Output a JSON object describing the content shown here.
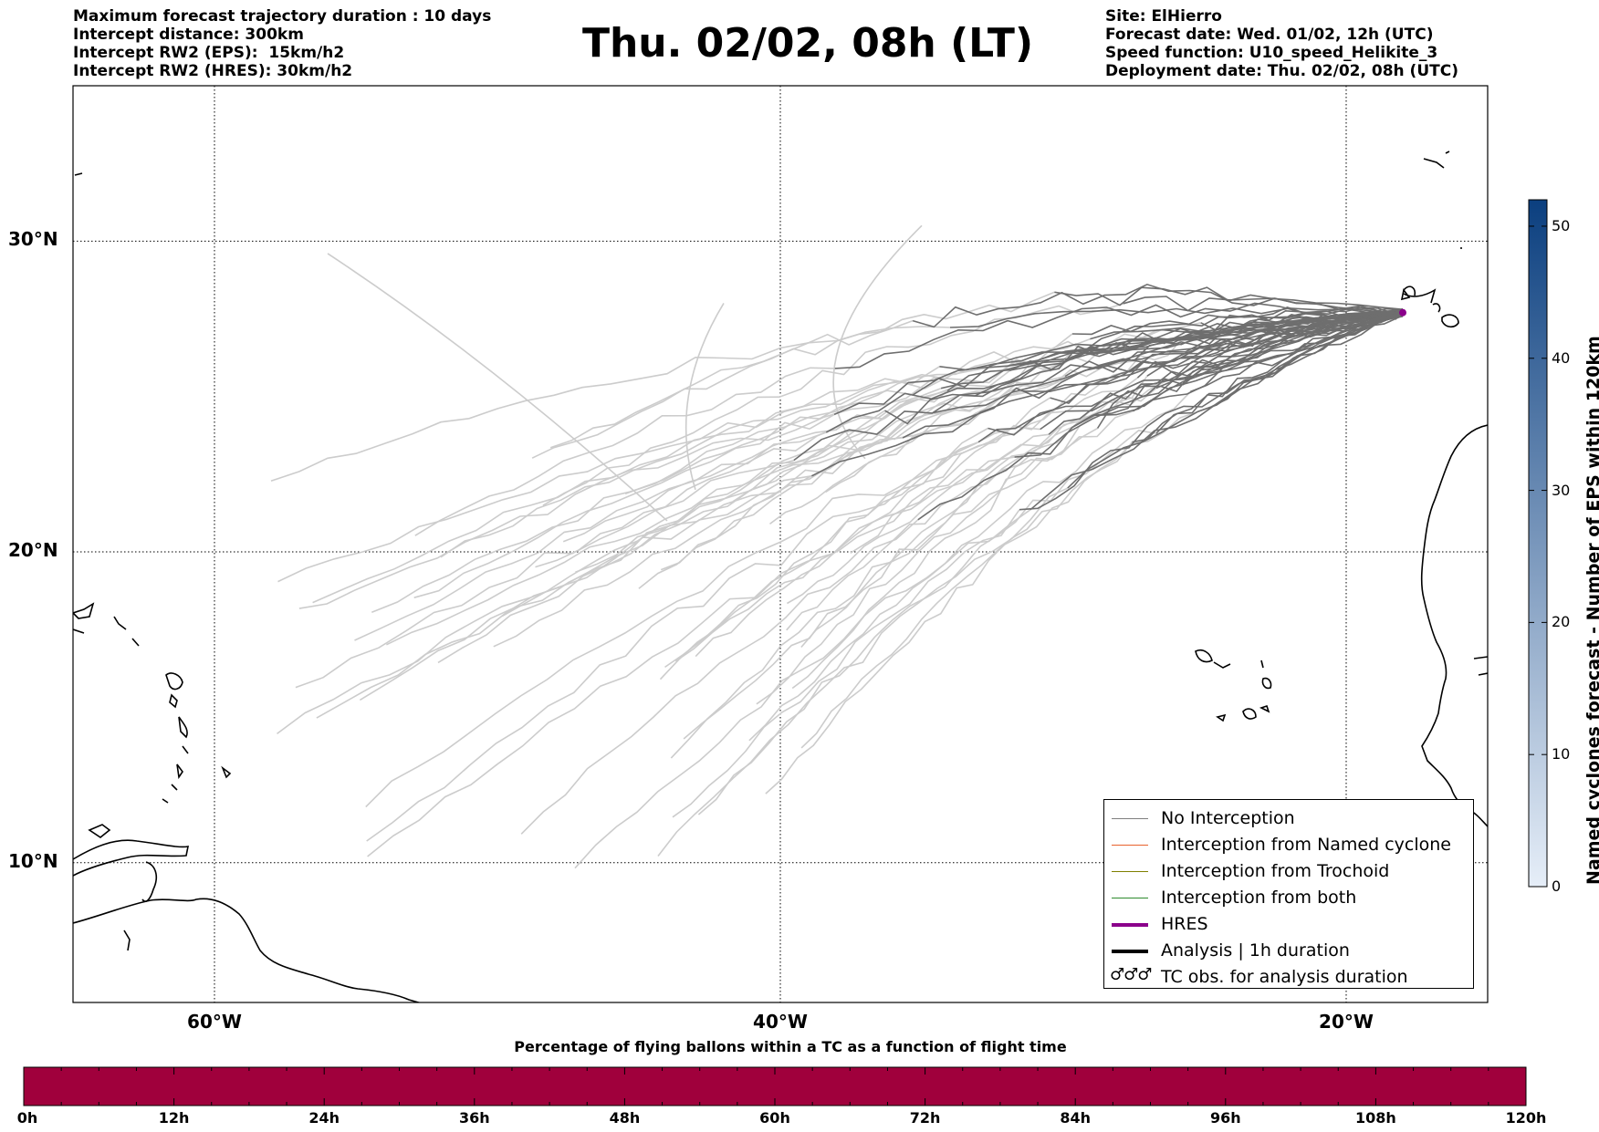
{
  "header": {
    "left_lines": [
      "Maximum forecast trajectory duration : 10 days",
      "Intercept distance: 300km",
      "Intercept RW2 (EPS):  15km/h2",
      "Intercept RW2 (HRES): 30km/h2"
    ],
    "title": "Thu. 02/02, 08h (LT)",
    "right_lines": [
      "Site: ElHierro",
      "Forecast date: Wed. 01/02, 12h (UTC)",
      "Speed function: U10_speed_Helikite_3",
      "Deployment date: Thu. 02/02, 08h (UTC)"
    ]
  },
  "map": {
    "lon_range": [
      -65,
      -15
    ],
    "lat_range": [
      5.5,
      35
    ],
    "lat_labels": [
      "30°N",
      "20°N",
      "10°N"
    ],
    "lat_values": [
      30,
      20,
      10
    ],
    "lon_labels": [
      "60°W",
      "40°W",
      "20°W"
    ],
    "lon_values": [
      -60,
      -40,
      -20
    ],
    "launch_site": {
      "lon": -18,
      "lat": 27.7
    },
    "trajectory_colors": {
      "near": "#6e6e6e",
      "far": "#cccccc"
    }
  },
  "legend": {
    "items": [
      {
        "label": "No Interception",
        "color": "#7f7f7f",
        "style": "thin"
      },
      {
        "label": "Interception from Named cyclone",
        "color": "#e8612c",
        "style": "thin"
      },
      {
        "label": "Interception from Trochoid",
        "color": "#808000",
        "style": "thin"
      },
      {
        "label": "Interception from both",
        "color": "#2e8b2e",
        "style": "thin"
      },
      {
        "label": "HRES",
        "color": "#8b008b",
        "style": "thick"
      },
      {
        "label": "Analysis | 1h duration",
        "color": "#000000",
        "style": "thick"
      },
      {
        "label": "TC obs. for analysis duration",
        "color": "#000000",
        "style": "symbol",
        "symbol": "♂♂♂"
      }
    ]
  },
  "colorbar": {
    "title": "Named cyclones forecast - Number of EPS within 120km",
    "ticks": [
      "0",
      "10",
      "20",
      "30",
      "40",
      "50"
    ],
    "tick_values": [
      0,
      10,
      20,
      30,
      40,
      50
    ],
    "max": 52,
    "color_low": "#e6eef8",
    "color_high": "#0b3f7f"
  },
  "flight_bar": {
    "title": "Percentage of flying ballons within a TC as a function of flight time",
    "ticks": [
      "0h",
      "12h",
      "24h",
      "36h",
      "48h",
      "60h",
      "72h",
      "84h",
      "96h",
      "108h",
      "120h"
    ],
    "fill_color": "#a0003c"
  }
}
